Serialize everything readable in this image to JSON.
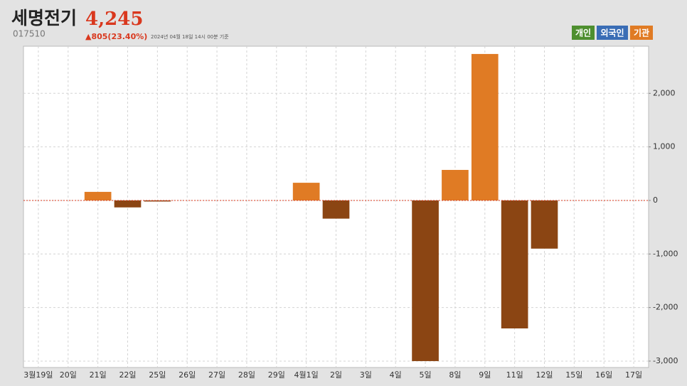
{
  "chart_data": {
    "type": "bar",
    "title": "세명전기",
    "price": "4,245",
    "code": "017510",
    "change": "▲805(23.40%)",
    "timestamp": "2024년 04월 18일 14시 00분 기준",
    "legend": [
      {
        "label": "개인",
        "color": "#4e8f2f"
      },
      {
        "label": "외국인",
        "color": "#3a6db5"
      },
      {
        "label": "기관",
        "color": "#e07b24"
      }
    ],
    "categories": [
      "3월19일",
      "20일",
      "21일",
      "22일",
      "25일",
      "26일",
      "27일",
      "28일",
      "29일",
      "4월1일",
      "2일",
      "3일",
      "4일",
      "5일",
      "8일",
      "9일",
      "11일",
      "12일",
      "15일",
      "16일",
      "17일"
    ],
    "values": [
      0,
      0,
      160,
      -130,
      -20,
      0,
      0,
      0,
      0,
      330,
      -340,
      0,
      0,
      -3000,
      570,
      2735,
      -2390,
      -900,
      0,
      0,
      0
    ],
    "positive_color": "#e07b24",
    "negative_color": "#8b4513",
    "ylim": [
      -3120,
      2880
    ],
    "yticks": [
      {
        "value": -3000,
        "label": "-3,000"
      },
      {
        "value": -2000,
        "label": "-2,000"
      },
      {
        "value": -1000,
        "label": "-1,000"
      },
      0,
      {
        "value": 1000,
        "label": "1,000"
      },
      {
        "value": 2000,
        "label": "2,000"
      }
    ],
    "grid": true
  }
}
